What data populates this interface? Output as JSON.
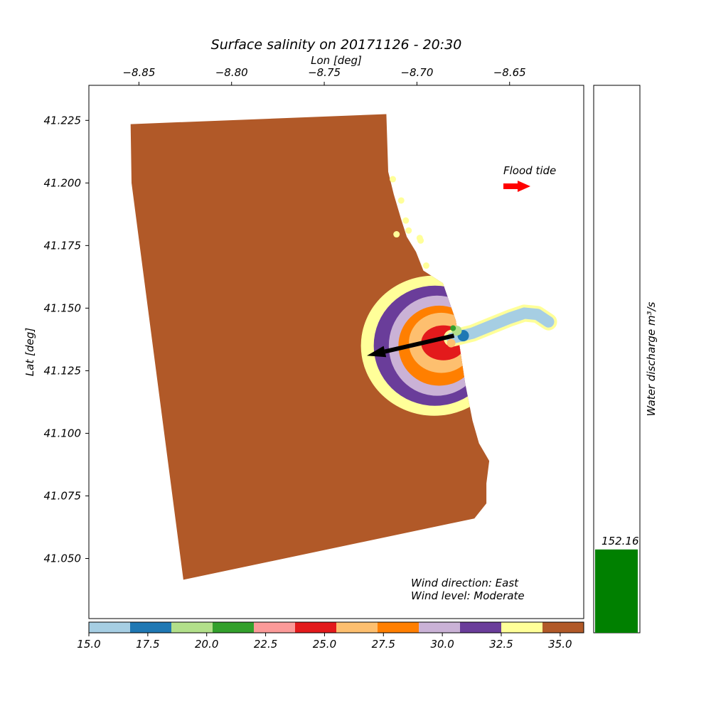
{
  "chart_data": {
    "type": "heatmap",
    "title": "Surface salinity on 20171126 - 20:30",
    "xlabel": "Lon [deg]",
    "ylabel": "Lat [deg]",
    "xlim": [
      -8.877,
      -8.61
    ],
    "ylim": [
      41.026,
      41.239
    ],
    "x_ticks": [
      -8.85,
      -8.8,
      -8.75,
      -8.7,
      -8.65
    ],
    "x_tick_labels": [
      "−8.85",
      "−8.80",
      "−8.75",
      "−8.70",
      "−8.65"
    ],
    "y_ticks": [
      41.05,
      41.075,
      41.1,
      41.125,
      41.15,
      41.175,
      41.2,
      41.225
    ],
    "y_tick_labels": [
      "41.050",
      "41.075",
      "41.100",
      "41.125",
      "41.150",
      "41.175",
      "41.200",
      "41.225"
    ],
    "annotations": {
      "tide_label": "Flood tide",
      "tide_arrow_color": "#ff0000",
      "wind_direction_text": "Wind direction: East",
      "wind_level_text": "Wind level: Moderate",
      "wind_arrow_color": "#000000",
      "wind_arrow_from": [
        -8.68,
        41.139
      ],
      "wind_arrow_to": [
        -8.727,
        41.131
      ]
    },
    "colorbar": {
      "boundaries": [
        15.0,
        16.75,
        18.5,
        20.25,
        22.0,
        23.75,
        25.5,
        27.25,
        29.0,
        30.75,
        32.5,
        34.25,
        36.0
      ],
      "colors": [
        "#a6cee3",
        "#1f78b4",
        "#b2df8a",
        "#33a02c",
        "#fb9a99",
        "#e31a1c",
        "#fdbf6f",
        "#ff7f00",
        "#cab2d6",
        "#6a3d9a",
        "#ffff99",
        "#b15928"
      ],
      "ticks": [
        15.0,
        17.5,
        20.0,
        22.5,
        25.0,
        27.5,
        30.0,
        32.5,
        35.0
      ],
      "tick_labels": [
        "15.0",
        "17.5",
        "20.0",
        "22.5",
        "25.0",
        "27.5",
        "30.0",
        "32.5",
        "35.0"
      ]
    },
    "discharge": {
      "label": "Water discharge m³/s",
      "value": 152.16,
      "value_label": "152.16",
      "ylim": [
        0,
        1000
      ],
      "bar_color": "#008000"
    },
    "plume": {
      "center": [
        -8.693,
        41.135
      ],
      "bands": [
        {
          "salinity": 33.5,
          "color": "#ffff99",
          "rx": 0.0395,
          "ry": 0.028
        },
        {
          "salinity": 31.5,
          "color": "#6a3d9a",
          "rx": 0.033,
          "ry": 0.024
        },
        {
          "salinity": 30.0,
          "color": "#cab2d6",
          "rx": 0.026,
          "ry": 0.02
        },
        {
          "salinity": 28.0,
          "color": "#ff7f00",
          "rx": 0.022,
          "ry": 0.016
        },
        {
          "salinity": 26.5,
          "color": "#fdbf6f",
          "rx": 0.0175,
          "ry": 0.012
        },
        {
          "salinity": 24.5,
          "color": "#e31a1c",
          "rx": 0.012,
          "ry": 0.007
        }
      ]
    }
  }
}
